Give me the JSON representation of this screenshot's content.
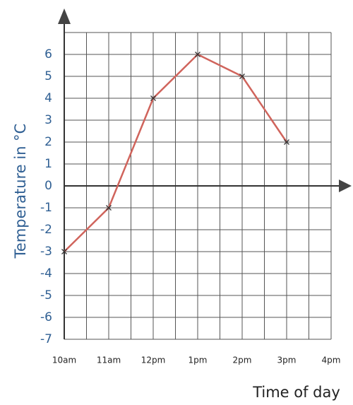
{
  "chart_data": {
    "type": "line",
    "categories": [
      "10am",
      "11am",
      "12pm",
      "1pm",
      "2pm",
      "3pm",
      "4pm"
    ],
    "values": [
      -3,
      -1,
      4,
      6,
      5,
      2,
      null
    ],
    "color": "#d0645c",
    "ylim": [
      -7,
      7
    ],
    "yticks": [
      -7,
      -6,
      -5,
      -4,
      -3,
      -2,
      -1,
      0,
      1,
      2,
      3,
      4,
      5,
      6
    ],
    "y_label": "Temperature in °C",
    "x_label": "Time of day",
    "grid": true
  }
}
